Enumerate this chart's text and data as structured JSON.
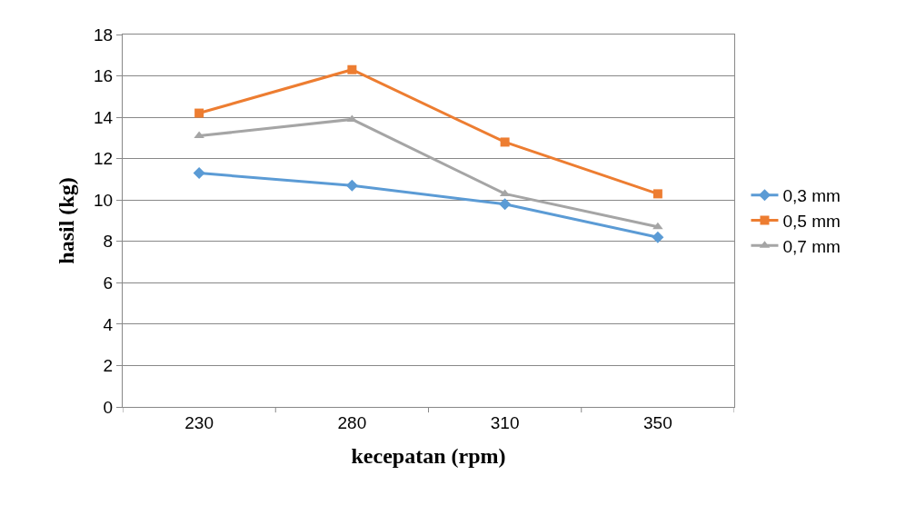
{
  "chart_data": {
    "type": "line",
    "xlabel": "kecepatan (rpm)",
    "ylabel": "hasil (kg)",
    "categories": [
      "230",
      "280",
      "310",
      "350"
    ],
    "series": [
      {
        "name": "0,3 mm",
        "color": "#5b9bd5",
        "marker": "diamond",
        "values": [
          11.3,
          10.7,
          9.8,
          8.2
        ]
      },
      {
        "name": "0,5 mm",
        "color": "#ed7d31",
        "marker": "square",
        "values": [
          14.2,
          16.3,
          12.8,
          10.3
        ]
      },
      {
        "name": "0,7 mm",
        "color": "#a5a5a5",
        "marker": "triangle",
        "values": [
          13.1,
          13.9,
          10.3,
          8.7
        ]
      }
    ],
    "ylim": [
      0,
      18
    ],
    "yticks": [
      0,
      2,
      4,
      6,
      8,
      10,
      12,
      14,
      16,
      18
    ],
    "grid": "y",
    "legend": "right",
    "line_style": "solid"
  }
}
